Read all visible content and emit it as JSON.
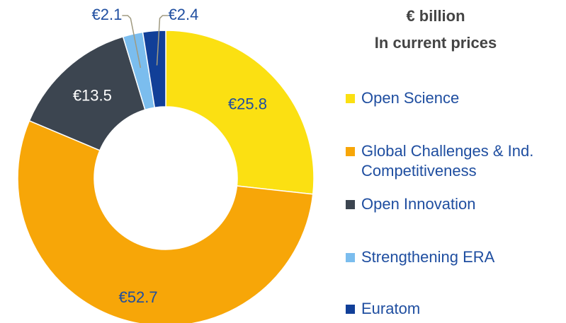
{
  "chart_data": {
    "type": "donut",
    "title": "€ billion",
    "subtitle": "In current prices",
    "categories": [
      "Open Science",
      "Global Challenges & Ind. Competitiveness",
      "Open Innovation",
      "Strengthening ERA",
      "Euratom"
    ],
    "values": [
      25.8,
      52.7,
      13.5,
      2.1,
      2.4
    ],
    "value_labels": [
      "€25.8",
      "€52.7",
      "€13.5",
      "€2.1",
      "€2.4"
    ],
    "colors": [
      "#fbe012",
      "#f7a608",
      "#3c4550",
      "#7bbdee",
      "#113f98"
    ]
  }
}
